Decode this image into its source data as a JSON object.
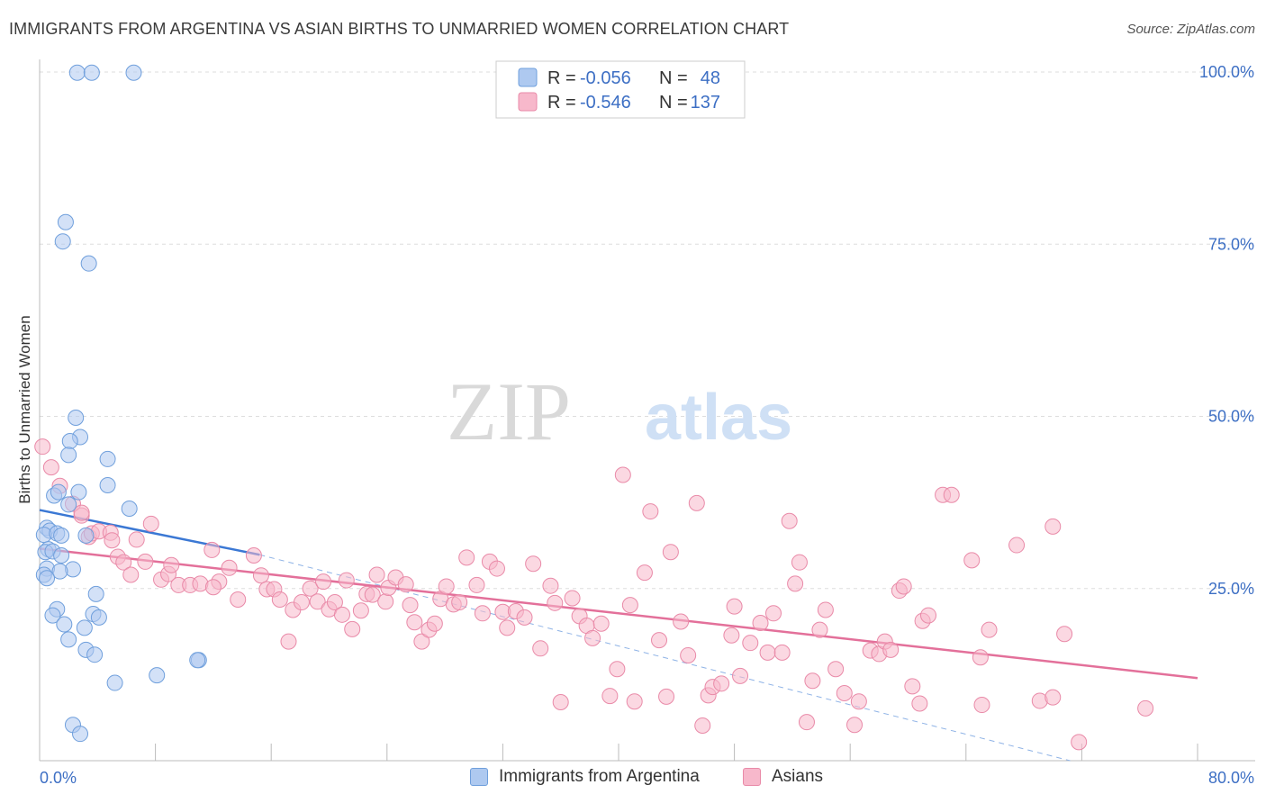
{
  "header": {
    "title": "IMMIGRANTS FROM ARGENTINA VS ASIAN BIRTHS TO UNMARRIED WOMEN CORRELATION CHART",
    "source": "Source: ZipAtlas.com"
  },
  "watermark": {
    "zip": "ZIP",
    "atlas": "atlas"
  },
  "legend": {
    "rows": [
      {
        "r_label": "R =",
        "r_value": "-0.056",
        "n_label": "N =",
        "n_value": "48"
      },
      {
        "r_label": "R =",
        "r_value": "-0.546",
        "n_label": "N =",
        "n_value": "137"
      }
    ]
  },
  "bottom_legend": {
    "series1": "Immigrants from Argentina",
    "series2": "Asians"
  },
  "colors": {
    "blue_fill": "#aec9f0",
    "blue_stroke": "#6f9fdc",
    "blue_line": "#3b78d4",
    "pink_fill": "#f7b8cb",
    "pink_stroke": "#e98aa8",
    "pink_line": "#e3709a",
    "tick_text": "#3d6fc4",
    "grid": "#dddddd"
  },
  "chart_data": {
    "type": "scatter",
    "title": "IMMIGRANTS FROM ARGENTINA VS ASIAN BIRTHS TO UNMARRIED WOMEN CORRELATION CHART",
    "xlabel": "",
    "ylabel": "Births to Unmarried Women",
    "xlim": [
      0,
      80
    ],
    "ylim": [
      0,
      100
    ],
    "x_tick_labels": [
      "0.0%",
      "80.0%"
    ],
    "y_tick_values": [
      25,
      50,
      75,
      100
    ],
    "y_tick_labels": [
      "25.0%",
      "50.0%",
      "75.0%",
      "100.0%"
    ],
    "grid": "horizontal dashed",
    "legend_position": "top-center",
    "series": [
      {
        "name": "Immigrants from Argentina",
        "color": "#aec9f0",
        "R": -0.056,
        "N": 48,
        "trend_solid": {
          "x": [
            0.0,
            15.2
          ],
          "y": [
            36.4,
            29.9
          ]
        },
        "trend_dashed": {
          "x": [
            15.2,
            71.2
          ],
          "y": [
            29.9,
            0.0
          ]
        },
        "points": [
          [
            2.6,
            99.9
          ],
          [
            3.6,
            99.9
          ],
          [
            6.5,
            99.9
          ],
          [
            1.8,
            78.2
          ],
          [
            1.6,
            75.4
          ],
          [
            3.4,
            72.2
          ],
          [
            2.5,
            49.8
          ],
          [
            2.8,
            47.0
          ],
          [
            2.1,
            46.4
          ],
          [
            2.0,
            44.4
          ],
          [
            4.7,
            43.8
          ],
          [
            4.7,
            40.0
          ],
          [
            6.2,
            36.6
          ],
          [
            1.0,
            38.5
          ],
          [
            1.3,
            39.0
          ],
          [
            2.7,
            39.0
          ],
          [
            2.0,
            37.2
          ],
          [
            0.5,
            33.8
          ],
          [
            0.7,
            33.4
          ],
          [
            0.3,
            32.8
          ],
          [
            1.2,
            33.0
          ],
          [
            1.5,
            32.7
          ],
          [
            3.2,
            32.7
          ],
          [
            0.6,
            30.7
          ],
          [
            0.4,
            30.3
          ],
          [
            0.9,
            30.4
          ],
          [
            1.5,
            29.8
          ],
          [
            2.3,
            27.8
          ],
          [
            0.5,
            27.9
          ],
          [
            1.4,
            27.5
          ],
          [
            0.3,
            27.0
          ],
          [
            0.5,
            26.5
          ],
          [
            3.9,
            24.2
          ],
          [
            1.2,
            22.0
          ],
          [
            0.9,
            21.1
          ],
          [
            3.7,
            21.3
          ],
          [
            4.1,
            20.8
          ],
          [
            1.7,
            19.8
          ],
          [
            3.1,
            19.3
          ],
          [
            2.0,
            17.6
          ],
          [
            3.2,
            16.1
          ],
          [
            3.8,
            15.4
          ],
          [
            11.0,
            14.6
          ],
          [
            10.9,
            14.6
          ],
          [
            8.1,
            12.4
          ],
          [
            5.2,
            11.3
          ],
          [
            2.3,
            5.2
          ],
          [
            2.8,
            3.9
          ]
        ]
      },
      {
        "name": "Asians",
        "color": "#f7b8cb",
        "R": -0.546,
        "N": 137,
        "trend": {
          "x": [
            0.0,
            80.0
          ],
          "y": [
            30.8,
            12.0
          ]
        },
        "points": [
          [
            0.2,
            45.6
          ],
          [
            0.8,
            42.6
          ],
          [
            1.4,
            39.9
          ],
          [
            2.3,
            37.3
          ],
          [
            2.9,
            35.6
          ],
          [
            2.9,
            36.0
          ],
          [
            3.4,
            32.5
          ],
          [
            3.6,
            33.0
          ],
          [
            4.1,
            33.3
          ],
          [
            4.9,
            33.1
          ],
          [
            5.0,
            32.0
          ],
          [
            7.7,
            34.4
          ],
          [
            6.7,
            32.1
          ],
          [
            5.4,
            29.6
          ],
          [
            5.8,
            28.8
          ],
          [
            6.3,
            27.0
          ],
          [
            7.3,
            28.9
          ],
          [
            8.4,
            26.3
          ],
          [
            8.9,
            27.1
          ],
          [
            9.1,
            28.4
          ],
          [
            9.6,
            25.5
          ],
          [
            10.4,
            25.5
          ],
          [
            11.1,
            25.7
          ],
          [
            11.9,
            30.6
          ],
          [
            12.4,
            26.0
          ],
          [
            12.0,
            25.2
          ],
          [
            13.1,
            28.0
          ],
          [
            13.7,
            23.4
          ],
          [
            14.8,
            29.8
          ],
          [
            15.3,
            26.9
          ],
          [
            15.7,
            24.9
          ],
          [
            16.2,
            24.9
          ],
          [
            16.6,
            23.4
          ],
          [
            17.2,
            17.3
          ],
          [
            17.5,
            21.9
          ],
          [
            18.1,
            23.0
          ],
          [
            18.7,
            25.0
          ],
          [
            19.2,
            23.1
          ],
          [
            19.6,
            26.0
          ],
          [
            20.0,
            22.0
          ],
          [
            20.4,
            23.0
          ],
          [
            20.9,
            21.2
          ],
          [
            21.2,
            26.2
          ],
          [
            21.6,
            19.1
          ],
          [
            22.2,
            21.8
          ],
          [
            22.6,
            24.2
          ],
          [
            23.0,
            24.1
          ],
          [
            23.3,
            27.0
          ],
          [
            23.9,
            23.1
          ],
          [
            24.1,
            25.1
          ],
          [
            24.6,
            26.6
          ],
          [
            25.3,
            25.6
          ],
          [
            25.6,
            22.6
          ],
          [
            25.9,
            20.1
          ],
          [
            26.4,
            17.3
          ],
          [
            26.9,
            19.0
          ],
          [
            27.3,
            19.9
          ],
          [
            27.7,
            23.5
          ],
          [
            28.1,
            25.3
          ],
          [
            28.6,
            22.7
          ],
          [
            29.0,
            23.0
          ],
          [
            29.5,
            29.5
          ],
          [
            30.2,
            25.5
          ],
          [
            30.6,
            21.4
          ],
          [
            31.1,
            28.9
          ],
          [
            31.6,
            27.9
          ],
          [
            32.0,
            21.6
          ],
          [
            32.3,
            19.3
          ],
          [
            32.9,
            21.7
          ],
          [
            33.5,
            20.8
          ],
          [
            34.1,
            28.6
          ],
          [
            34.6,
            16.3
          ],
          [
            35.3,
            25.4
          ],
          [
            35.6,
            22.9
          ],
          [
            36.0,
            8.5
          ],
          [
            36.8,
            23.6
          ],
          [
            37.3,
            21.0
          ],
          [
            37.8,
            19.6
          ],
          [
            38.2,
            17.8
          ],
          [
            38.8,
            19.9
          ],
          [
            39.4,
            9.4
          ],
          [
            39.9,
            13.3
          ],
          [
            40.3,
            41.5
          ],
          [
            40.8,
            22.6
          ],
          [
            41.1,
            8.6
          ],
          [
            41.8,
            27.3
          ],
          [
            42.2,
            36.2
          ],
          [
            42.8,
            17.5
          ],
          [
            43.3,
            9.3
          ],
          [
            43.6,
            30.3
          ],
          [
            44.3,
            20.2
          ],
          [
            44.8,
            15.3
          ],
          [
            45.4,
            37.4
          ],
          [
            45.8,
            5.1
          ],
          [
            46.2,
            9.5
          ],
          [
            46.5,
            10.7
          ],
          [
            47.1,
            11.2
          ],
          [
            47.8,
            18.2
          ],
          [
            48.0,
            22.4
          ],
          [
            48.4,
            12.3
          ],
          [
            49.1,
            17.1
          ],
          [
            49.8,
            20.0
          ],
          [
            50.3,
            15.7
          ],
          [
            50.7,
            21.4
          ],
          [
            51.3,
            15.7
          ],
          [
            51.8,
            34.8
          ],
          [
            52.2,
            25.7
          ],
          [
            52.5,
            28.8
          ],
          [
            53.0,
            5.6
          ],
          [
            53.4,
            11.6
          ],
          [
            53.9,
            19.0
          ],
          [
            54.3,
            21.9
          ],
          [
            55.0,
            13.3
          ],
          [
            55.6,
            9.8
          ],
          [
            56.3,
            5.2
          ],
          [
            56.6,
            8.6
          ],
          [
            57.4,
            16.0
          ],
          [
            58.0,
            15.5
          ],
          [
            58.4,
            17.3
          ],
          [
            58.8,
            16.1
          ],
          [
            59.4,
            24.7
          ],
          [
            59.7,
            25.3
          ],
          [
            60.3,
            10.8
          ],
          [
            60.8,
            8.3
          ],
          [
            61.0,
            20.3
          ],
          [
            61.4,
            21.1
          ],
          [
            62.4,
            38.6
          ],
          [
            63.0,
            38.6
          ],
          [
            64.4,
            29.1
          ],
          [
            65.1,
            8.1
          ],
          [
            65.0,
            15.0
          ],
          [
            65.6,
            19.0
          ],
          [
            67.5,
            31.3
          ],
          [
            69.1,
            8.7
          ],
          [
            70.0,
            9.2
          ],
          [
            70.8,
            18.4
          ],
          [
            71.8,
            2.7
          ],
          [
            76.4,
            7.6
          ],
          [
            70.0,
            34.0
          ]
        ]
      }
    ]
  }
}
